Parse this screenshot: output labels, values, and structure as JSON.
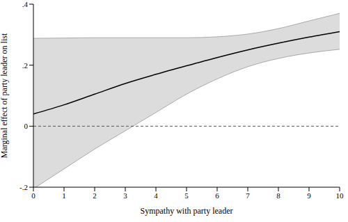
{
  "chart_data": {
    "type": "line",
    "x_label": "Sympathy with party leader",
    "y_label": "Marginal effect of party leader on list",
    "x": [
      0,
      1,
      2,
      3,
      4,
      5,
      6,
      7,
      8,
      9,
      10
    ],
    "values": [
      0.04,
      0.07,
      0.105,
      0.14,
      0.17,
      0.198,
      0.225,
      0.25,
      0.272,
      0.292,
      0.31
    ],
    "lower": [
      -0.205,
      -0.14,
      -0.075,
      -0.015,
      0.045,
      0.105,
      0.155,
      0.195,
      0.222,
      0.24,
      0.252
    ],
    "upper": [
      0.288,
      0.289,
      0.29,
      0.29,
      0.29,
      0.29,
      0.293,
      0.302,
      0.32,
      0.345,
      0.37
    ],
    "color": "#000000",
    "xlim": [
      0,
      10
    ],
    "xticks": [
      0,
      1,
      2,
      3,
      4,
      5,
      6,
      7,
      8,
      9,
      10
    ],
    "ylim": [
      -0.2,
      0.4
    ],
    "yticks": [
      {
        "value": -0.2,
        "label": "-.2"
      },
      {
        "value": 0,
        "label": "0"
      },
      {
        "value": 0.2,
        "label": ".2"
      },
      {
        "value": 0.4,
        "label": ".4"
      }
    ],
    "reference_line": {
      "y": 0,
      "line_style": "dashed"
    },
    "grid": false
  }
}
